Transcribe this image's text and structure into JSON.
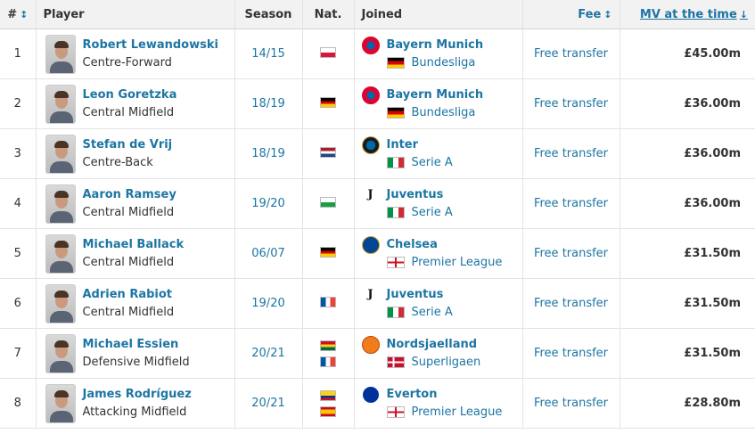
{
  "header": {
    "num": "#",
    "player": "Player",
    "season": "Season",
    "nat": "Nat.",
    "joined": "Joined",
    "fee": "Fee",
    "mv": "MV at the time"
  },
  "rows": [
    {
      "rank": "1",
      "name": "Robert Lewandowski",
      "position": "Centre-Forward",
      "season": "14/15",
      "nat": [
        "poland"
      ],
      "club": "Bayern Munich",
      "club_crest": "bayern-crest",
      "league": "Bundesliga",
      "league_flag": "germany",
      "fee": "Free transfer",
      "mv": "£45.00m"
    },
    {
      "rank": "2",
      "name": "Leon Goretzka",
      "position": "Central Midfield",
      "season": "18/19",
      "nat": [
        "germany"
      ],
      "club": "Bayern Munich",
      "club_crest": "bayern-crest",
      "league": "Bundesliga",
      "league_flag": "germany",
      "fee": "Free transfer",
      "mv": "£36.00m"
    },
    {
      "rank": "3",
      "name": "Stefan de Vrij",
      "position": "Centre-Back",
      "season": "18/19",
      "nat": [
        "netherlands"
      ],
      "club": "Inter",
      "club_crest": "inter-crest",
      "league": "Serie A",
      "league_flag": "italy",
      "fee": "Free transfer",
      "mv": "£36.00m"
    },
    {
      "rank": "4",
      "name": "Aaron Ramsey",
      "position": "Central Midfield",
      "season": "19/20",
      "nat": [
        "wales"
      ],
      "club": "Juventus",
      "club_crest": "juventus-crest",
      "league": "Serie A",
      "league_flag": "italy",
      "fee": "Free transfer",
      "mv": "£36.00m"
    },
    {
      "rank": "5",
      "name": "Michael Ballack",
      "position": "Central Midfield",
      "season": "06/07",
      "nat": [
        "germany"
      ],
      "club": "Chelsea",
      "club_crest": "chelsea-crest",
      "league": "Premier League",
      "league_flag": "england",
      "fee": "Free transfer",
      "mv": "£31.50m"
    },
    {
      "rank": "6",
      "name": "Adrien Rabiot",
      "position": "Central Midfield",
      "season": "19/20",
      "nat": [
        "france"
      ],
      "club": "Juventus",
      "club_crest": "juventus-crest",
      "league": "Serie A",
      "league_flag": "italy",
      "fee": "Free transfer",
      "mv": "£31.50m"
    },
    {
      "rank": "7",
      "name": "Michael Essien",
      "position": "Defensive Midfield",
      "season": "20/21",
      "nat": [
        "ghana",
        "france"
      ],
      "club": "Nordsjaelland",
      "club_crest": "nordsjaelland-crest",
      "league": "Superligaen",
      "league_flag": "denmark",
      "fee": "Free transfer",
      "mv": "£31.50m"
    },
    {
      "rank": "8",
      "name": "James Rodríguez",
      "position": "Attacking Midfield",
      "season": "20/21",
      "nat": [
        "colombia",
        "spain"
      ],
      "club": "Everton",
      "club_crest": "everton-crest",
      "league": "Premier League",
      "league_flag": "england",
      "fee": "Free transfer",
      "mv": "£28.80m"
    }
  ],
  "colors": {
    "link": "#1d75a3",
    "header_bg": "#f2f2f2",
    "border": "#e3e3e3"
  }
}
